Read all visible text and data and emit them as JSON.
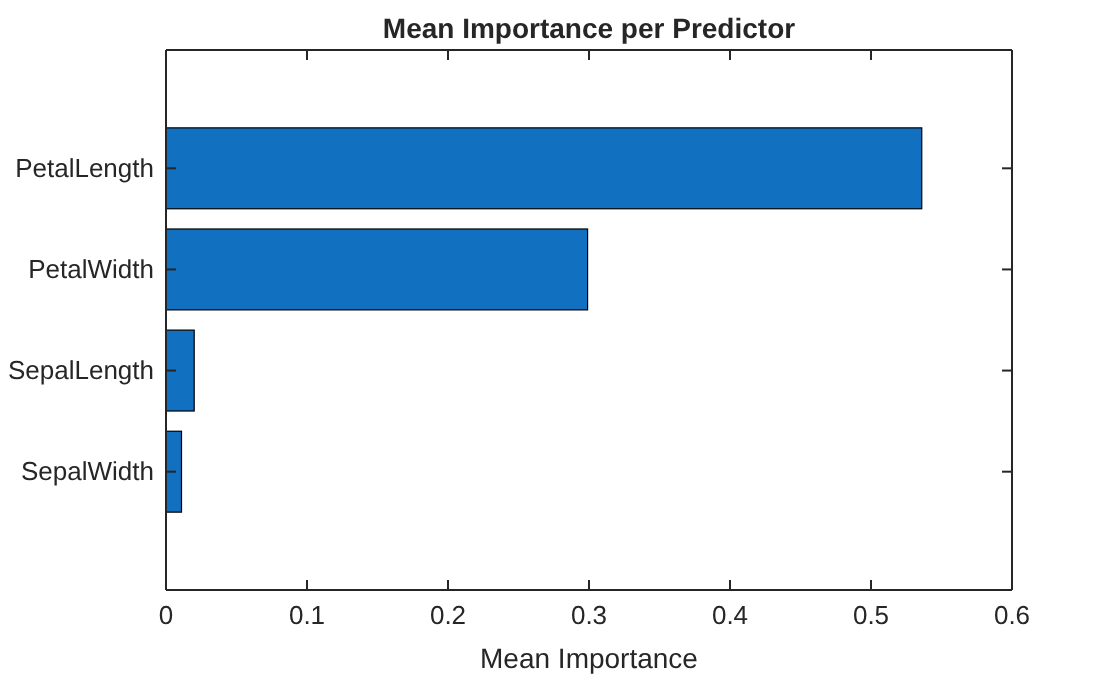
{
  "chart_data": {
    "type": "bar",
    "orientation": "horizontal",
    "title": "Mean Importance per Predictor",
    "xlabel": "Mean Importance",
    "categories": [
      "PetalLength",
      "PetalWidth",
      "SepalLength",
      "SepalWidth"
    ],
    "values": [
      0.536,
      0.299,
      0.02,
      0.011
    ],
    "color": "#1170c0",
    "xlim": [
      0,
      0.6
    ],
    "xticks": [
      0,
      0.1,
      0.2,
      0.3,
      0.4,
      0.5,
      0.6
    ],
    "grid": false
  }
}
